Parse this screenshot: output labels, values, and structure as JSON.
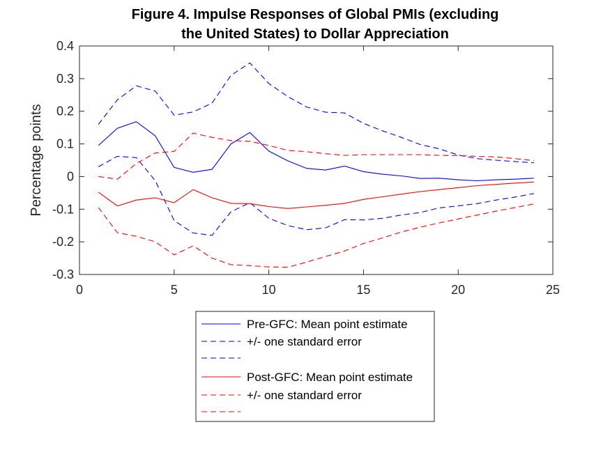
{
  "chart_data": {
    "type": "line",
    "title_line1": "Figure 4. Impulse Responses of Global PMIs (excluding",
    "title_line2": "the United States) to Dollar Appreciation",
    "xlabel": "",
    "ylabel": "Percentage points",
    "xlim": [
      0,
      25
    ],
    "ylim": [
      -0.3,
      0.4
    ],
    "xticks": [
      "0",
      "5",
      "10",
      "15",
      "20",
      "25"
    ],
    "yticks": [
      "0.4",
      "0.3",
      "0.2",
      "0.1",
      "0",
      "-0.1",
      "-0.2",
      "-0.3"
    ],
    "grid": false,
    "legend_position": "below",
    "x": [
      1,
      2,
      3,
      4,
      5,
      6,
      7,
      8,
      9,
      10,
      11,
      12,
      13,
      14,
      15,
      16,
      17,
      18,
      19,
      20,
      21,
      22,
      23,
      24
    ],
    "series": [
      {
        "name": "Pre-GFC: Mean point estimate",
        "color": "#0000ff",
        "dash": "solid",
        "values": [
          0.095,
          0.148,
          0.168,
          0.125,
          0.028,
          0.013,
          0.022,
          0.1,
          0.135,
          0.078,
          0.048,
          0.025,
          0.02,
          0.032,
          0.015,
          0.007,
          0.002,
          -0.006,
          -0.005,
          -0.01,
          -0.013,
          -0.01,
          -0.008,
          -0.005
        ]
      },
      {
        "name": "+/- one standard error",
        "color": "#0000ff",
        "dash": "dashed",
        "values": [
          0.16,
          0.235,
          0.278,
          0.262,
          0.188,
          0.198,
          0.225,
          0.31,
          0.348,
          0.285,
          0.245,
          0.213,
          0.197,
          0.195,
          0.163,
          0.14,
          0.12,
          0.098,
          0.085,
          0.066,
          0.055,
          0.05,
          0.046,
          0.042
        ]
      },
      {
        "name": "",
        "color": "#0000ff",
        "dash": "dashed",
        "values": [
          0.03,
          0.062,
          0.058,
          -0.012,
          -0.135,
          -0.173,
          -0.18,
          -0.108,
          -0.08,
          -0.128,
          -0.15,
          -0.163,
          -0.157,
          -0.132,
          -0.133,
          -0.128,
          -0.118,
          -0.11,
          -0.096,
          -0.09,
          -0.083,
          -0.072,
          -0.063,
          -0.052
        ]
      },
      {
        "name": "Post-GFC: Mean point estimate",
        "color": "#ff0000",
        "dash": "solid",
        "values": [
          -0.048,
          -0.09,
          -0.072,
          -0.065,
          -0.08,
          -0.04,
          -0.065,
          -0.082,
          -0.083,
          -0.092,
          -0.098,
          -0.093,
          -0.088,
          -0.082,
          -0.07,
          -0.062,
          -0.054,
          -0.046,
          -0.04,
          -0.034,
          -0.028,
          -0.024,
          -0.02,
          -0.017
        ]
      },
      {
        "name": "+/- one standard error",
        "color": "#ff0000",
        "dash": "dashed",
        "values": [
          0.0,
          -0.008,
          0.04,
          0.072,
          0.077,
          0.133,
          0.12,
          0.11,
          0.108,
          0.095,
          0.08,
          0.076,
          0.07,
          0.065,
          0.067,
          0.067,
          0.067,
          0.067,
          0.065,
          0.064,
          0.062,
          0.06,
          0.055,
          0.049
        ]
      },
      {
        "name": "",
        "color": "#ff0000",
        "dash": "dashed",
        "values": [
          -0.095,
          -0.172,
          -0.183,
          -0.2,
          -0.24,
          -0.212,
          -0.25,
          -0.27,
          -0.273,
          -0.277,
          -0.278,
          -0.262,
          -0.245,
          -0.228,
          -0.205,
          -0.188,
          -0.17,
          -0.155,
          -0.142,
          -0.13,
          -0.118,
          -0.106,
          -0.095,
          -0.084
        ]
      }
    ]
  }
}
